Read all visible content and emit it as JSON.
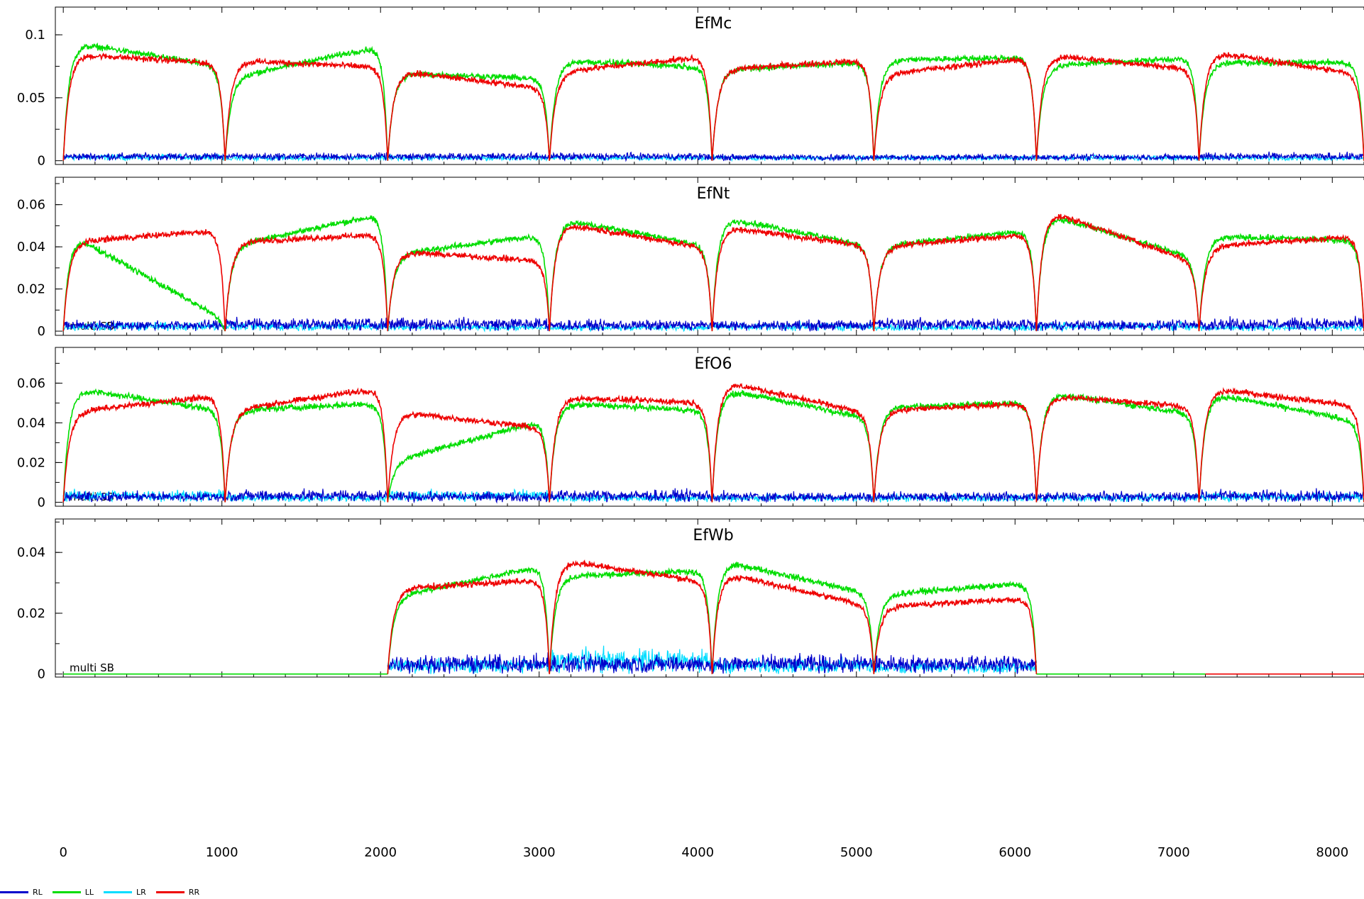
{
  "chart_data": {
    "type": "line",
    "x_ticks": [
      0,
      1000,
      2000,
      3000,
      4000,
      5000,
      6000,
      7000,
      8000
    ],
    "xlim": [
      -50,
      8200
    ],
    "series_colors": {
      "RL": "#0000cc",
      "LL": "#00dd00",
      "LR": "#00ddff",
      "RR": "#ee0000"
    },
    "legend": [
      {
        "label": "RL",
        "color": "#0000cc"
      },
      {
        "label": "LL",
        "color": "#00dd00"
      },
      {
        "label": "LR",
        "color": "#00ddff"
      },
      {
        "label": "RR",
        "color": "#ee0000"
      }
    ],
    "panels": [
      {
        "title": "EfMc",
        "ylim": [
          -0.003,
          0.122
        ],
        "y_ticks": [
          0,
          0.05,
          0.1
        ],
        "y_tick_labels": [
          "0",
          "0.05",
          "0.1"
        ],
        "annotation": "",
        "segments": [
          {
            "start": 0,
            "end": 1020,
            "LL": 0.074,
            "RR": 0.077,
            "LL_start": 0.095,
            "RR_start": 0.085,
            "RL": 0.006,
            "LR": 0.005
          },
          {
            "start": 1020,
            "end": 2045,
            "LL": 0.092,
            "RR": 0.074,
            "LL_start": 0.065,
            "RR_start": 0.08,
            "RL": 0.006,
            "LR": 0.004
          },
          {
            "start": 2045,
            "end": 3065,
            "LL": 0.065,
            "RR": 0.057,
            "LL_start": 0.07,
            "RR_start": 0.072,
            "RL": 0.006,
            "LR": 0.004
          },
          {
            "start": 3065,
            "end": 4090,
            "LL": 0.074,
            "RR": 0.083,
            "LL_start": 0.08,
            "RR_start": 0.07,
            "RL": 0.006,
            "LR": 0.004
          },
          {
            "start": 4090,
            "end": 5110,
            "LL": 0.078,
            "RR": 0.08,
            "LL_start": 0.072,
            "RR_start": 0.072,
            "RL": 0.005,
            "LR": 0.004
          },
          {
            "start": 5110,
            "end": 6135,
            "LL": 0.082,
            "RR": 0.082,
            "LL_start": 0.08,
            "RR_start": 0.068,
            "RL": 0.005,
            "LR": 0.004
          },
          {
            "start": 6135,
            "end": 7160,
            "LL": 0.082,
            "RR": 0.072,
            "LL_start": 0.075,
            "RR_start": 0.085,
            "RL": 0.005,
            "LR": 0.004
          },
          {
            "start": 7160,
            "end": 8200,
            "LL": 0.078,
            "RR": 0.068,
            "LL_start": 0.078,
            "RR_start": 0.088,
            "RL": 0.006,
            "LR": 0.004
          }
        ]
      },
      {
        "title": "EfNt",
        "ylim": [
          -0.002,
          0.073
        ],
        "y_ticks": [
          0,
          0.02,
          0.04,
          0.06
        ],
        "y_tick_labels": [
          "0",
          "0.02",
          "0.04",
          "0.06"
        ],
        "annotation": "multi SB",
        "segments": [
          {
            "start": 0,
            "end": 1020,
            "LL": 0.005,
            "RR": 0.048,
            "LL_start": 0.048,
            "RR_start": 0.042,
            "RL": 0.005,
            "LR": 0.004
          },
          {
            "start": 1020,
            "end": 2045,
            "LL": 0.056,
            "RR": 0.046,
            "LL_start": 0.04,
            "RR_start": 0.042,
            "RL": 0.006,
            "LR": 0.004
          },
          {
            "start": 2045,
            "end": 3065,
            "LL": 0.046,
            "RR": 0.033,
            "LL_start": 0.036,
            "RR_start": 0.038,
            "RL": 0.006,
            "LR": 0.003
          },
          {
            "start": 3065,
            "end": 4090,
            "LL": 0.04,
            "RR": 0.039,
            "LL_start": 0.054,
            "RR_start": 0.052,
            "RL": 0.005,
            "LR": 0.003
          },
          {
            "start": 4090,
            "end": 5110,
            "LL": 0.04,
            "RR": 0.04,
            "LL_start": 0.055,
            "RR_start": 0.05,
            "RL": 0.005,
            "LR": 0.004
          },
          {
            "start": 5110,
            "end": 6135,
            "LL": 0.048,
            "RR": 0.046,
            "LL_start": 0.04,
            "RR_start": 0.04,
            "RL": 0.006,
            "LR": 0.003
          },
          {
            "start": 6135,
            "end": 7160,
            "LL": 0.034,
            "RR": 0.032,
            "LL_start": 0.057,
            "RR_start": 0.059,
            "RL": 0.005,
            "LR": 0.004
          },
          {
            "start": 7160,
            "end": 8200,
            "LL": 0.043,
            "RR": 0.045,
            "LL_start": 0.045,
            "RR_start": 0.04,
            "RL": 0.006,
            "LR": 0.003
          }
        ]
      },
      {
        "title": "EfO6",
        "ylim": [
          -0.002,
          0.078
        ],
        "y_ticks": [
          0,
          0.02,
          0.04,
          0.06
        ],
        "y_tick_labels": [
          "0",
          "0.02",
          "0.04",
          "0.06"
        ],
        "annotation": "multi SB",
        "segments": [
          {
            "start": 0,
            "end": 1020,
            "LL": 0.046,
            "RR": 0.054,
            "LL_start": 0.058,
            "RR_start": 0.045,
            "RL": 0.005,
            "LR": 0.006
          },
          {
            "start": 1020,
            "end": 2045,
            "LL": 0.05,
            "RR": 0.058,
            "LL_start": 0.046,
            "RR_start": 0.046,
            "RL": 0.006,
            "LR": 0.004
          },
          {
            "start": 2045,
            "end": 3065,
            "LL": 0.042,
            "RR": 0.037,
            "LL_start": 0.02,
            "RR_start": 0.046,
            "RL": 0.005,
            "LR": 0.006
          },
          {
            "start": 3065,
            "end": 4090,
            "LL": 0.046,
            "RR": 0.05,
            "LL_start": 0.05,
            "RR_start": 0.053,
            "RL": 0.006,
            "LR": 0.004
          },
          {
            "start": 4090,
            "end": 5110,
            "LL": 0.042,
            "RR": 0.044,
            "LL_start": 0.058,
            "RR_start": 0.062,
            "RL": 0.005,
            "LR": 0.004
          },
          {
            "start": 5110,
            "end": 6135,
            "LL": 0.05,
            "RR": 0.05,
            "LL_start": 0.048,
            "RR_start": 0.046,
            "RL": 0.005,
            "LR": 0.004
          },
          {
            "start": 6135,
            "end": 7160,
            "LL": 0.044,
            "RR": 0.048,
            "LL_start": 0.056,
            "RR_start": 0.054,
            "RL": 0.005,
            "LR": 0.004
          },
          {
            "start": 7160,
            "end": 8200,
            "LL": 0.04,
            "RR": 0.048,
            "LL_start": 0.056,
            "RR_start": 0.058,
            "RL": 0.006,
            "LR": 0.005
          }
        ]
      },
      {
        "title": "EfWb",
        "ylim": [
          -0.001,
          0.051
        ],
        "y_ticks": [
          0,
          0.02,
          0.04
        ],
        "y_tick_labels": [
          "0",
          "0.02",
          "0.04"
        ],
        "annotation": "multi SB",
        "segments": [
          {
            "start": 0,
            "end": 2045,
            "flat": true,
            "color": "LL"
          },
          {
            "start": 2045,
            "end": 3065,
            "LL": 0.036,
            "RR": 0.031,
            "LL_start": 0.025,
            "RR_start": 0.028,
            "RL": 0.006,
            "LR": 0.005
          },
          {
            "start": 3065,
            "end": 4090,
            "LL": 0.034,
            "RR": 0.03,
            "LL_start": 0.032,
            "RR_start": 0.038,
            "RL": 0.006,
            "LR": 0.008
          },
          {
            "start": 4090,
            "end": 5110,
            "LL": 0.026,
            "RR": 0.022,
            "LL_start": 0.038,
            "RR_start": 0.034,
            "RL": 0.006,
            "LR": 0.005
          },
          {
            "start": 5110,
            "end": 6135,
            "LL": 0.03,
            "RR": 0.025,
            "LL_start": 0.026,
            "RR_start": 0.022,
            "RL": 0.006,
            "LR": 0.004
          },
          {
            "start": 6135,
            "end": 7200,
            "flat": true,
            "color": "LL"
          },
          {
            "start": 7200,
            "end": 8200,
            "flat": true,
            "color": "RR"
          }
        ]
      }
    ]
  }
}
